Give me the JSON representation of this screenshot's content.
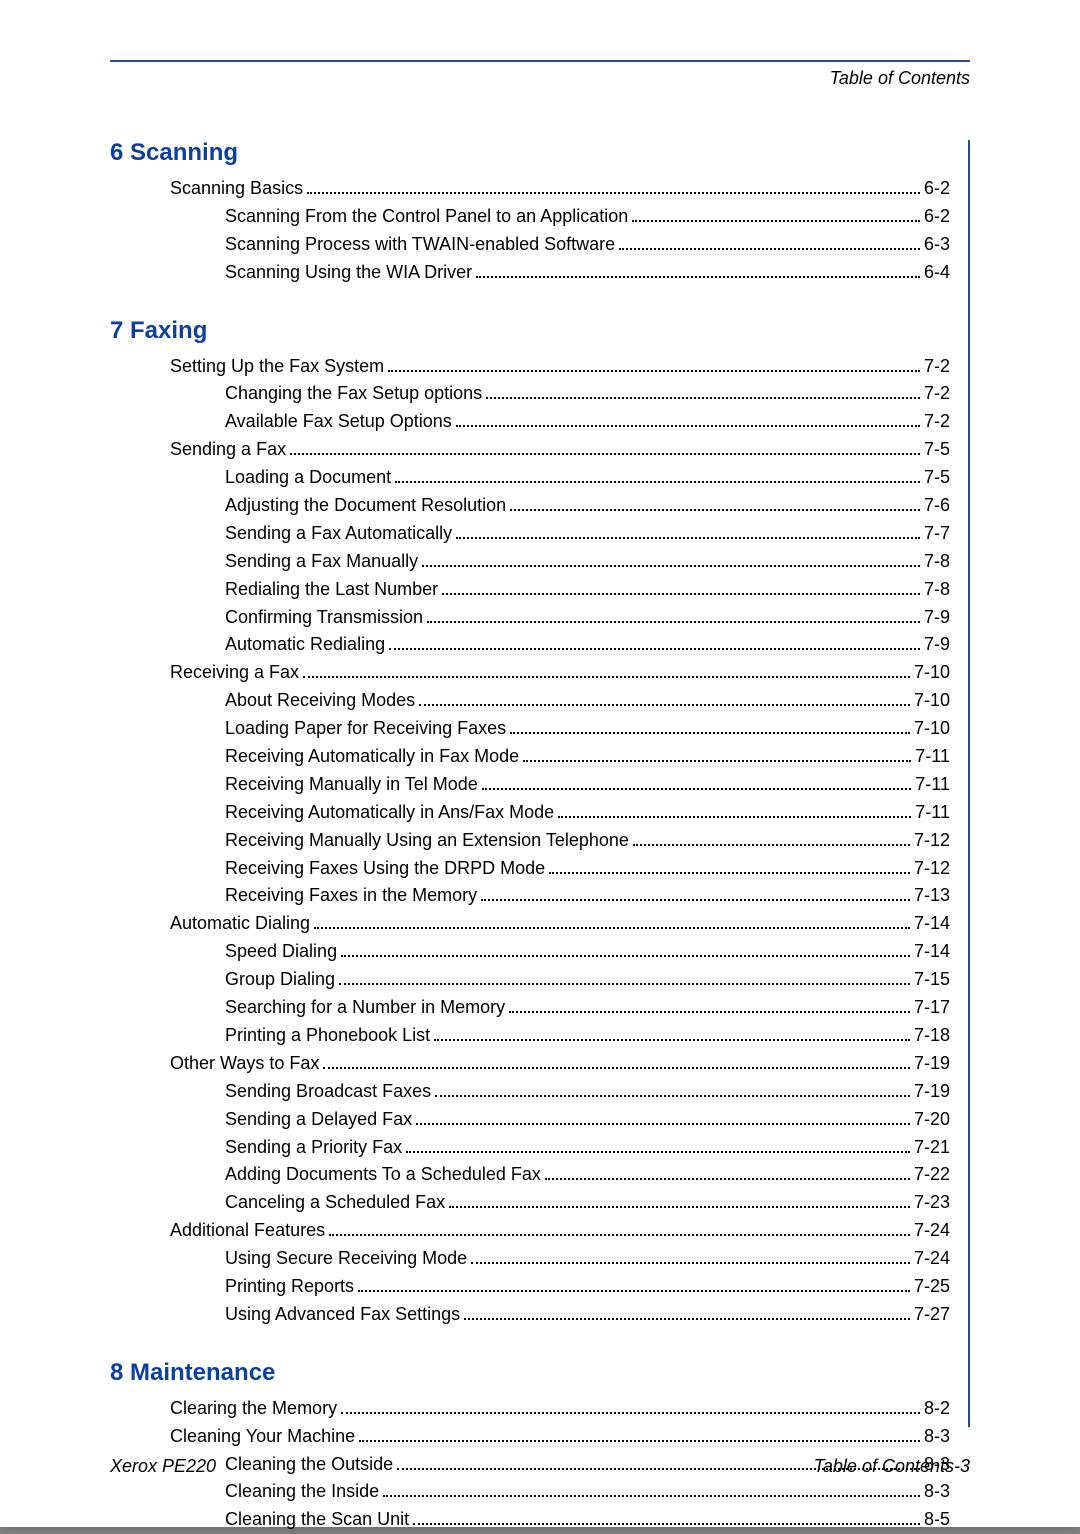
{
  "header_right": "Table of Contents",
  "footer_left": "Xerox PE220",
  "footer_right": "Table of Contents-3",
  "chapters": [
    {
      "title": "6 Scanning",
      "entries": [
        {
          "level": 1,
          "label": "Scanning Basics",
          "page": "6-2"
        },
        {
          "level": 2,
          "label": "Scanning From the Control Panel to an Application",
          "page": "6-2"
        },
        {
          "level": 2,
          "label": "Scanning Process with TWAIN-enabled Software",
          "page": "6-3"
        },
        {
          "level": 2,
          "label": "Scanning Using the WIA Driver",
          "page": "6-4"
        }
      ]
    },
    {
      "title": "7 Faxing",
      "entries": [
        {
          "level": 1,
          "label": "Setting Up the Fax System",
          "page": "7-2"
        },
        {
          "level": 2,
          "label": "Changing the Fax Setup options",
          "page": "7-2"
        },
        {
          "level": 2,
          "label": "Available Fax Setup Options",
          "page": "7-2"
        },
        {
          "level": 1,
          "label": "Sending a Fax",
          "page": "7-5"
        },
        {
          "level": 2,
          "label": "Loading a Document",
          "page": "7-5"
        },
        {
          "level": 2,
          "label": "Adjusting the Document Resolution",
          "page": "7-6"
        },
        {
          "level": 2,
          "label": "Sending a Fax Automatically",
          "page": "7-7"
        },
        {
          "level": 2,
          "label": "Sending a Fax Manually",
          "page": "7-8"
        },
        {
          "level": 2,
          "label": "Redialing the Last Number",
          "page": "7-8"
        },
        {
          "level": 2,
          "label": "Confirming Transmission",
          "page": "7-9"
        },
        {
          "level": 2,
          "label": "Automatic Redialing",
          "page": "7-9"
        },
        {
          "level": 1,
          "label": "Receiving a Fax",
          "page": "7-10"
        },
        {
          "level": 2,
          "label": "About Receiving Modes",
          "page": "7-10"
        },
        {
          "level": 2,
          "label": "Loading Paper for Receiving Faxes",
          "page": "7-10"
        },
        {
          "level": 2,
          "label": "Receiving Automatically in Fax Mode",
          "page": "7-11"
        },
        {
          "level": 2,
          "label": "Receiving Manually in Tel Mode",
          "page": "7-11"
        },
        {
          "level": 2,
          "label": "Receiving Automatically in Ans/Fax Mode",
          "page": "7-11"
        },
        {
          "level": 2,
          "label": "Receiving Manually Using an Extension Telephone",
          "page": "7-12"
        },
        {
          "level": 2,
          "label": "Receiving Faxes Using the DRPD Mode",
          "page": "7-12"
        },
        {
          "level": 2,
          "label": "Receiving Faxes in the Memory",
          "page": "7-13"
        },
        {
          "level": 1,
          "label": "Automatic Dialing",
          "page": "7-14"
        },
        {
          "level": 2,
          "label": "Speed Dialing",
          "page": "7-14"
        },
        {
          "level": 2,
          "label": "Group Dialing",
          "page": "7-15"
        },
        {
          "level": 2,
          "label": "Searching for a Number in Memory",
          "page": "7-17"
        },
        {
          "level": 2,
          "label": "Printing a Phonebook List",
          "page": "7-18"
        },
        {
          "level": 1,
          "label": "Other Ways to Fax",
          "page": "7-19"
        },
        {
          "level": 2,
          "label": "Sending Broadcast Faxes",
          "page": "7-19"
        },
        {
          "level": 2,
          "label": "Sending a Delayed Fax",
          "page": "7-20"
        },
        {
          "level": 2,
          "label": "Sending a Priority Fax",
          "page": "7-21"
        },
        {
          "level": 2,
          "label": "Adding Documents To a Scheduled Fax",
          "page": "7-22"
        },
        {
          "level": 2,
          "label": "Canceling a Scheduled Fax",
          "page": "7-23"
        },
        {
          "level": 1,
          "label": "Additional Features",
          "page": "7-24"
        },
        {
          "level": 2,
          "label": "Using Secure Receiving Mode",
          "page": "7-24"
        },
        {
          "level": 2,
          "label": "Printing Reports",
          "page": "7-25"
        },
        {
          "level": 2,
          "label": "Using Advanced Fax Settings",
          "page": "7-27"
        }
      ]
    },
    {
      "title": "8 Maintenance",
      "entries": [
        {
          "level": 1,
          "label": "Clearing the Memory",
          "page": "8-2"
        },
        {
          "level": 1,
          "label": "Cleaning Your Machine",
          "page": "8-3"
        },
        {
          "level": 2,
          "label": "Cleaning the Outside",
          "page": "8-3"
        },
        {
          "level": 2,
          "label": "Cleaning the Inside",
          "page": "8-3"
        },
        {
          "level": 2,
          "label": "Cleaning the Scan Unit",
          "page": "8-5"
        }
      ]
    }
  ]
}
